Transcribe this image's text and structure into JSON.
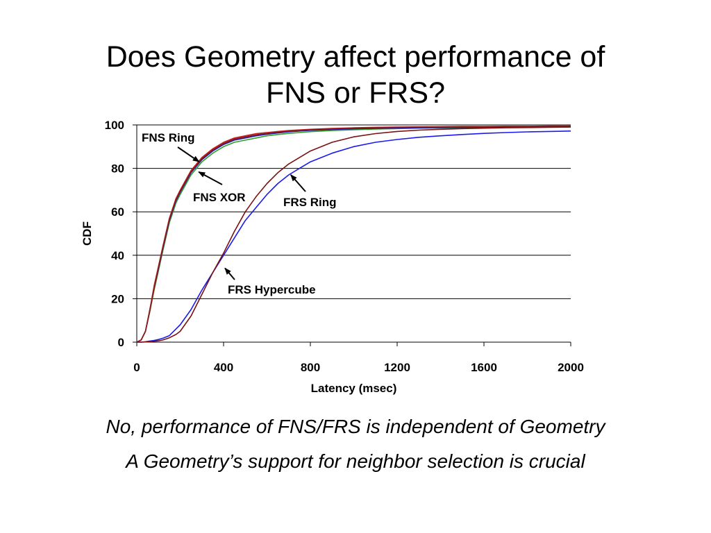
{
  "slide": {
    "title_line1": "Does Geometry affect performance of",
    "title_line2": "FNS or FRS?",
    "caption_line1": "No, performance of FNS/FRS is independent of Geometry",
    "caption_line2": "A Geometry’s support for neighbor selection is crucial"
  },
  "chart_data": {
    "type": "line",
    "xlabel": "Latency (msec)",
    "ylabel": "CDF",
    "xlim": [
      0,
      2000
    ],
    "ylim": [
      0,
      100
    ],
    "xticks": [
      0,
      400,
      800,
      1200,
      1600,
      2000
    ],
    "yticks": [
      0,
      20,
      40,
      60,
      80,
      100
    ],
    "grid": "horizontal",
    "legend": "none (inline annotations with arrows)",
    "x": [
      0,
      20,
      40,
      60,
      80,
      100,
      120,
      150,
      180,
      200,
      250,
      300,
      350,
      400,
      450,
      500,
      550,
      600,
      650,
      700,
      750,
      800,
      900,
      1000,
      1100,
      1200,
      1300,
      1400,
      1500,
      1600,
      1700,
      1800,
      1900,
      2000
    ],
    "series": [
      {
        "color": "#2e9e2e",
        "values": [
          0,
          1,
          5,
          14,
          24,
          33,
          42,
          55,
          64,
          68,
          77,
          83,
          87,
          90,
          92,
          93,
          94,
          95,
          95.6,
          96.1,
          96.5,
          96.9,
          97.4,
          97.8,
          98.1,
          98.3,
          98.5,
          98.6,
          98.7,
          98.8,
          98.9,
          99.0,
          99.0,
          99.1
        ]
      },
      {
        "color": "#1a1aa8",
        "values": [
          0,
          1,
          5,
          15,
          25,
          34,
          43,
          56,
          65,
          69,
          78,
          84,
          88,
          91,
          93,
          94,
          95,
          95.7,
          96.3,
          96.8,
          97.2,
          97.5,
          97.9,
          98.2,
          98.4,
          98.6,
          98.7,
          98.8,
          98.9,
          99.0,
          99.0,
          99.1,
          99.1,
          99.2
        ]
      },
      {
        "color": "#cc2222",
        "values": [
          0,
          1,
          5,
          15,
          26,
          35,
          44,
          57,
          66,
          70,
          79,
          85,
          89,
          92,
          94,
          95,
          96,
          96.5,
          97,
          97.4,
          97.7,
          98,
          98.4,
          98.7,
          98.9,
          99.0,
          99.1,
          99.2,
          99.3,
          99.3,
          99.4,
          99.4,
          99.5,
          99.5
        ]
      },
      {
        "color": "#8b1a1a",
        "values": [
          0,
          1,
          5,
          14.5,
          25,
          34.5,
          43.5,
          56.5,
          65.5,
          69.5,
          78.5,
          84.5,
          88.5,
          91.5,
          93.5,
          94.5,
          95.5,
          96.1,
          96.7,
          97.1,
          97.5,
          97.8,
          98.2,
          98.5,
          98.7,
          98.9,
          99.0,
          99.1,
          99.2,
          99.2,
          99.3,
          99.3,
          99.4,
          99.4
        ]
      },
      {
        "color": "#1a1aee",
        "values": [
          0,
          0,
          0.2,
          0.5,
          0.8,
          1.2,
          1.8,
          3,
          6,
          8,
          15,
          24,
          32,
          40,
          48,
          56,
          62,
          68,
          73,
          77,
          80,
          83,
          87,
          90,
          92,
          93.3,
          94.3,
          95,
          95.6,
          96.1,
          96.5,
          96.8,
          97,
          97.2
        ]
      },
      {
        "color": "#7a1010",
        "values": [
          0,
          0,
          0.1,
          0.2,
          0.4,
          0.6,
          1,
          2,
          3.5,
          5,
          12,
          22,
          32,
          41,
          51,
          60,
          67,
          73,
          78,
          82,
          85,
          88,
          92,
          94.5,
          96,
          97,
          97.6,
          98,
          98.3,
          98.5,
          98.7,
          98.8,
          98.9,
          99
        ]
      }
    ],
    "annotations": [
      {
        "text": "FNS Ring",
        "arrow_to": [
          300,
          84
        ]
      },
      {
        "text": "FNS XOR",
        "arrow_to": [
          295,
          79
        ]
      },
      {
        "text": "FRS Ring",
        "arrow_to": [
          700,
          78
        ]
      },
      {
        "text": "FRS Hypercube",
        "arrow_to": [
          400,
          35
        ]
      }
    ],
    "colors": {
      "grid": "#000000",
      "axis": "#000000"
    }
  }
}
